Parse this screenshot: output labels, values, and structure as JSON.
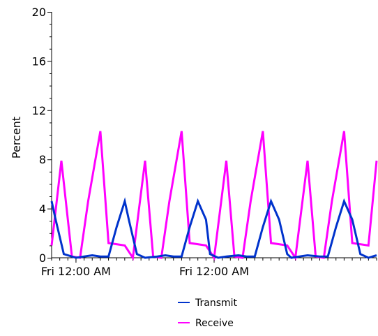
{
  "chart_data": {
    "type": "line",
    "title": "",
    "ylabel": "Percent",
    "xlabel": "",
    "ylim": [
      0,
      20
    ],
    "xlim": [
      0,
      40
    ],
    "yticks": [
      0,
      4,
      8,
      12,
      16,
      20
    ],
    "x_tick_labels": [
      {
        "x": 3,
        "label": "Fri 12:00 AM"
      },
      {
        "x": 20,
        "label": "Fri 12:00 AM"
      }
    ],
    "grid": false,
    "legend": {
      "placement": "bottom"
    },
    "series": [
      {
        "name": "Transmit",
        "color": "#0033cc",
        "x": [
          0,
          0.5,
          1.5,
          3,
          4,
          5,
          6,
          7,
          8,
          9,
          9.5,
          10.5,
          11.5,
          13,
          14,
          15,
          16,
          17,
          18,
          19,
          19.5,
          20.5,
          21.5,
          23,
          24,
          25,
          26,
          27,
          28,
          29,
          29.5,
          30.5,
          31.5,
          33,
          34,
          35,
          36,
          37,
          38,
          39,
          39.5,
          40
        ],
        "y": [
          4.6,
          3.1,
          0.3,
          0.0,
          0.1,
          0.2,
          0.1,
          0.1,
          2.5,
          4.6,
          3.1,
          0.3,
          0.0,
          0.1,
          0.2,
          0.1,
          0.1,
          2.5,
          4.6,
          3.1,
          0.3,
          0.0,
          0.1,
          0.2,
          0.1,
          0.1,
          2.5,
          4.6,
          3.1,
          0.3,
          0.0,
          0.1,
          0.2,
          0.1,
          0.1,
          2.5,
          4.6,
          3.1,
          0.3,
          0.0,
          0.1,
          0.2
        ]
      },
      {
        "name": "Receive",
        "color": "#ff00ff",
        "x": [
          0,
          1.2,
          2.5,
          3.5,
          4.5,
          6,
          7,
          9,
          10,
          11.5,
          12.5,
          13.5,
          14.5,
          16,
          17,
          19,
          20,
          21.5,
          22.5,
          23.5,
          24.5,
          26,
          27,
          29,
          30,
          31.5,
          32.5,
          33.5,
          34.5,
          36,
          37,
          39,
          40
        ],
        "y": [
          1.0,
          7.9,
          0.1,
          0.0,
          4.6,
          10.3,
          1.2,
          1.0,
          0.0,
          7.9,
          0.1,
          0.0,
          4.6,
          10.3,
          1.2,
          1.0,
          0.0,
          7.9,
          0.1,
          0.0,
          4.6,
          10.3,
          1.2,
          1.0,
          0.0,
          7.9,
          0.1,
          0.0,
          4.6,
          10.3,
          1.2,
          1.0,
          7.9
        ]
      }
    ]
  }
}
